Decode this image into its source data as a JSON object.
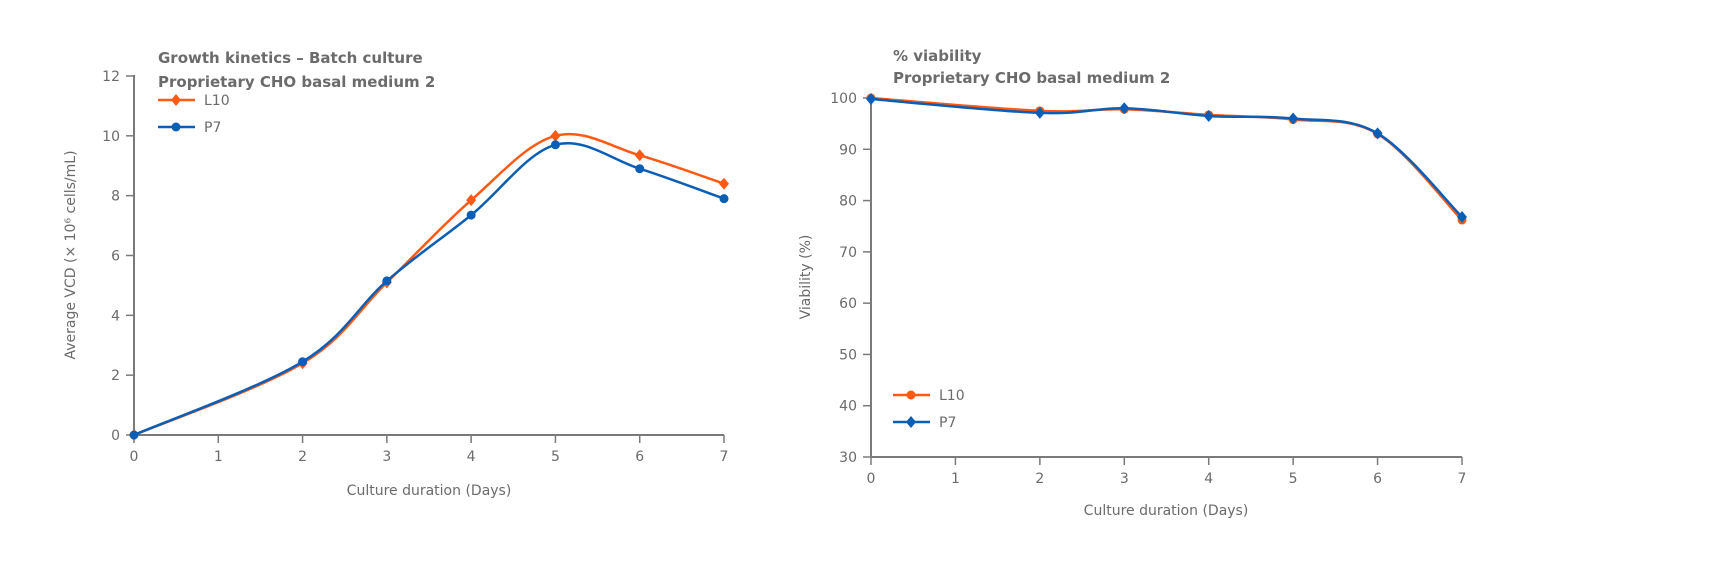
{
  "colors": {
    "L10": "#FF5A14",
    "P7": "#0B5EB5",
    "axis": "#7a7a7a"
  },
  "chart_data": [
    {
      "type": "line",
      "title": [
        "Growth kinetics – Batch culture",
        "Proprietary CHO basal medium 2"
      ],
      "xlabel": "Culture duration (Days)",
      "ylabel": "Average VCD (× 10⁶ cells/mL)",
      "xlim": [
        0,
        7
      ],
      "ylim": [
        0,
        12
      ],
      "xticks": [
        0,
        1,
        2,
        3,
        4,
        5,
        6,
        7
      ],
      "yticks": [
        0,
        2,
        4,
        6,
        8,
        10,
        12
      ],
      "grid": false,
      "legend": "top-left",
      "x": [
        0,
        2,
        3,
        4,
        5,
        6,
        7
      ],
      "series": [
        {
          "name": "L10",
          "marker": "diamond",
          "values": [
            0,
            2.4,
            5.1,
            7.85,
            10.0,
            9.35,
            8.4
          ]
        },
        {
          "name": "P7",
          "marker": "circle",
          "values": [
            0,
            2.45,
            5.15,
            7.35,
            9.7,
            8.9,
            7.9
          ]
        }
      ]
    },
    {
      "type": "line",
      "title": [
        "% viability",
        "Proprietary CHO basal medium 2"
      ],
      "xlabel": "Culture duration (Days)",
      "ylabel": "Viability (%)",
      "xlim": [
        0,
        7
      ],
      "ylim": [
        30,
        100
      ],
      "xticks": [
        0,
        1,
        2,
        3,
        4,
        5,
        6,
        7
      ],
      "yticks": [
        30,
        40,
        50,
        60,
        70,
        80,
        90,
        100
      ],
      "grid": false,
      "legend": "bottom-left",
      "x": [
        0,
        2,
        3,
        4,
        5,
        6,
        7
      ],
      "series": [
        {
          "name": "L10",
          "marker": "circle",
          "values": [
            100,
            97.5,
            97.8,
            96.7,
            95.8,
            93.0,
            76.2
          ]
        },
        {
          "name": "P7",
          "marker": "diamond",
          "values": [
            99.8,
            97.1,
            98.0,
            96.5,
            96.0,
            93.1,
            76.8
          ]
        }
      ]
    }
  ]
}
